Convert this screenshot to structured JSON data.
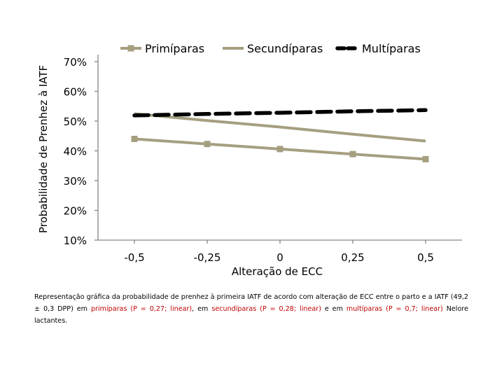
{
  "chart_data": {
    "type": "line",
    "x": [
      -0.5,
      -0.25,
      0,
      0.25,
      0.5
    ],
    "x_tick_labels": [
      "-0,5",
      "-0,25",
      "0",
      "0,25",
      "0,5"
    ],
    "xlabel": "Alteração de ECC",
    "ylabel": "Probabilidade de Prenhez à IATF",
    "y_ticks": [
      10,
      20,
      30,
      40,
      50,
      60,
      70
    ],
    "y_tick_labels": [
      "10%",
      "20%",
      "30%",
      "40%",
      "50%",
      "60%",
      "70%"
    ],
    "ylim": [
      10,
      72
    ],
    "grid": false,
    "legend_position": "top",
    "series": [
      {
        "name": "Primíparas",
        "values": [
          44,
          42.3,
          40.6,
          38.9,
          37.2
        ],
        "color": "#a59f80",
        "marker": "square",
        "dash": "solid"
      },
      {
        "name": "Secundíparas",
        "values": [
          52.5,
          50.2,
          48,
          45.6,
          43.3
        ],
        "color": "#a59f80",
        "marker": "none",
        "dash": "solid"
      },
      {
        "name": "Multíparas",
        "values": [
          51.9,
          52.4,
          52.8,
          53.3,
          53.7
        ],
        "color": "#000000",
        "marker": "none",
        "dash": "dashed"
      }
    ]
  },
  "caption": {
    "part1": "Representação gráfica da probabilidade de prenhez à primeira IATF de acordo com alteração de ECC entre o parto e a IATF (49,2 ± 0,3 DPP) em ",
    "red1": "primíparas (P = 0,27; linear)",
    "part2": ", em ",
    "red2": "secundíparas (P = 0,28; linear)",
    "part3": " e em ",
    "red3": "multíparas (P = 0,7; linear)",
    "part4": " Nelore lactantes."
  }
}
